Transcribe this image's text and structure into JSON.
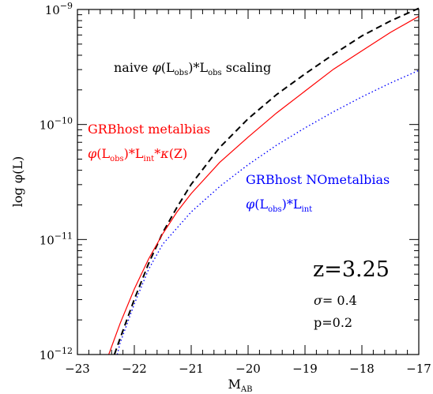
{
  "chart_data": {
    "type": "line",
    "xlabel": "M",
    "xlabel_sub": "AB",
    "ylabel": "log φ(L)",
    "xlim": [
      -23,
      -17
    ],
    "ylim_exp": [
      -12,
      -9
    ],
    "yscale": "log",
    "x_ticks": [
      "−23",
      "−22",
      "−21",
      "−20",
      "−19",
      "−18",
      "−17"
    ],
    "y_ticks": [
      {
        "base": "10",
        "exp": "−12"
      },
      {
        "base": "10",
        "exp": "−11"
      },
      {
        "base": "10",
        "exp": "−10"
      },
      {
        "base": "10",
        "exp": "−9"
      }
    ],
    "series": [
      {
        "color": "#000000",
        "style": "dashed",
        "x": [
          -22.35,
          -22.25,
          -22.0,
          -21.75,
          -21.5,
          -21.25,
          -21.0,
          -20.5,
          -20.0,
          -19.5,
          -19.0,
          -18.5,
          -18.0,
          -17.5,
          -17.0
        ],
        "y": [
          -12.0,
          -11.86,
          -11.52,
          -11.21,
          -10.94,
          -10.72,
          -10.52,
          -10.2,
          -9.95,
          -9.74,
          -9.56,
          -9.39,
          -9.23,
          -9.1,
          -8.99
        ]
      },
      {
        "color": "#ff0000",
        "style": "solid",
        "x": [
          -22.45,
          -22.25,
          -22.0,
          -21.75,
          -21.5,
          -21.25,
          -21.0,
          -20.5,
          -20.0,
          -19.5,
          -19.0,
          -18.5,
          -18.0,
          -17.5,
          -17.0
        ],
        "y": [
          -12.0,
          -11.73,
          -11.43,
          -11.17,
          -10.95,
          -10.76,
          -10.6,
          -10.33,
          -10.11,
          -9.9,
          -9.71,
          -9.52,
          -9.36,
          -9.2,
          -9.06
        ]
      },
      {
        "color": "#0000ff",
        "style": "dotted",
        "x": [
          -22.3,
          -22.25,
          -22.0,
          -21.75,
          -21.5,
          -21.25,
          -21.0,
          -20.5,
          -20.0,
          -19.5,
          -19.0,
          -18.5,
          -18.0,
          -17.5,
          -17.0
        ],
        "y": [
          -12.0,
          -11.9,
          -11.56,
          -11.26,
          -11.04,
          -10.9,
          -10.76,
          -10.54,
          -10.35,
          -10.18,
          -10.03,
          -9.89,
          -9.76,
          -9.64,
          -9.53
        ]
      }
    ],
    "annotations": {
      "naive": {
        "pre": "naive ",
        "phi": "φ",
        "open": "(L",
        "sub1": "obs",
        "mid": ")*L",
        "sub2": "obs",
        "post": " scaling",
        "color": "#000000"
      },
      "metal_title": {
        "text": "GRBhost metalbias",
        "color": "#ff0000"
      },
      "metal_formula": {
        "phi": "φ",
        "open": "(L",
        "sub1": "obs",
        "mid": ")*L",
        "sub2": "int",
        "post": "*",
        "kappa": "κ",
        "end": "(Z)",
        "color": "#ff0000"
      },
      "nometal_title": {
        "text": "GRBhost NOmetalbias",
        "color": "#0000ff"
      },
      "nometal_formula": {
        "phi": "φ",
        "open": "(L",
        "sub1": "obs",
        "mid": ")*L",
        "sub2": "int",
        "color": "#0000ff"
      },
      "z_label": "z=3.25",
      "sigma_symbol": "σ",
      "sigma_value": "=  0.4",
      "p_label": "p=0.2"
    }
  }
}
